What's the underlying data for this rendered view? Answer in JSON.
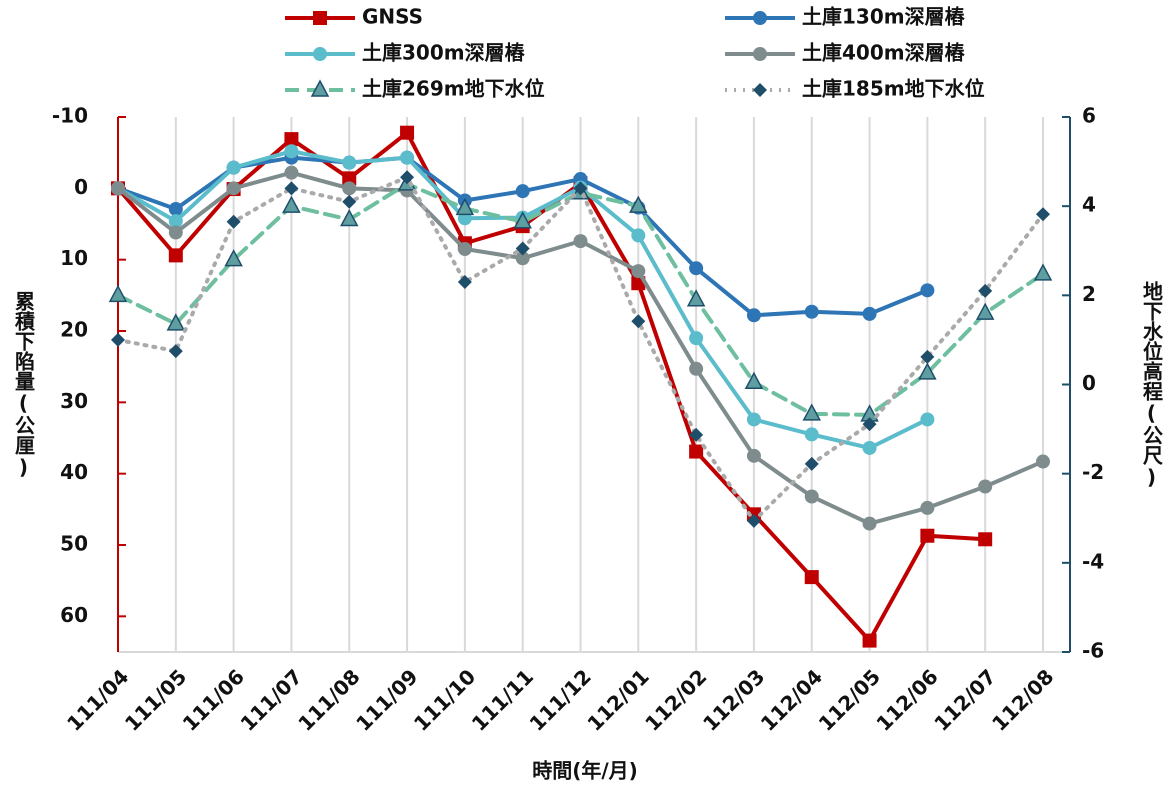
{
  "chart_data": {
    "type": "line",
    "x_label": "時間(年/月)",
    "y_label": "累積下陷量(公厘)",
    "y2_label": "地下水位高程(公尺)",
    "categories": [
      "111/04",
      "111/05",
      "111/06",
      "111/07",
      "111/08",
      "111/09",
      "111/10",
      "111/11",
      "111/12",
      "112/01",
      "112/02",
      "112/03",
      "112/04",
      "112/05",
      "112/06",
      "112/07",
      "112/08"
    ],
    "ylim": [
      -10,
      65
    ],
    "y_reversed": true,
    "yticks": [
      -10,
      0,
      10,
      20,
      30,
      40,
      50,
      60
    ],
    "y2lim": [
      -6,
      6
    ],
    "y2ticks": [
      6,
      4,
      2,
      0,
      -2,
      -4,
      -6
    ],
    "grid": "x",
    "series": [
      {
        "name": "GNSS",
        "color": "#c00000",
        "marker": "square",
        "dash": "solid",
        "values": [
          0,
          9.4,
          0.1,
          -6.9,
          -1.4,
          -7.8,
          7.7,
          5.3,
          -0.7,
          13.3,
          36.9,
          45.7,
          54.5,
          63.4,
          48.7,
          49.2,
          null
        ]
      },
      {
        "name": "土庫130m深層樁",
        "color": "#2e75b6",
        "marker": "circle",
        "dash": "solid",
        "values": [
          0,
          2.9,
          -2.9,
          -4.3,
          -3.6,
          -4.3,
          1.7,
          0.4,
          -1.3,
          2.7,
          11.2,
          17.8,
          17.3,
          17.6,
          14.3,
          null,
          null
        ]
      },
      {
        "name": "土庫300m深層樁",
        "color": "#5bbccc",
        "marker": "circle",
        "dash": "solid",
        "values": [
          0,
          4.6,
          -2.9,
          -5.2,
          -3.6,
          -4.3,
          4.2,
          4.1,
          -0.1,
          6.6,
          21,
          32.4,
          34.5,
          36.4,
          32.4,
          null,
          null
        ]
      },
      {
        "name": "土庫400m深層樁",
        "color": "#7f8c8d",
        "marker": "circle",
        "dash": "solid",
        "values": [
          0,
          6.2,
          0,
          -2.2,
          0,
          0.3,
          8.5,
          9.8,
          7.4,
          11.6,
          25.3,
          37.5,
          43.2,
          47,
          44.8,
          41.8,
          38.3
        ]
      },
      {
        "name": "土庫269m地下水位",
        "color": "#6dbf9f",
        "marker": "triangle",
        "marker_color": "#5f9ea0",
        "dash": "dashed",
        "axis": "y2",
        "values": [
          2.0,
          1.36,
          2.8,
          4.0,
          3.7,
          4.5,
          3.95,
          3.65,
          4.3,
          4.0,
          1.9,
          0.05,
          -0.66,
          -0.68,
          0.26,
          1.6,
          2.48
        ]
      },
      {
        "name": "土庫185m地下水位",
        "color": "#aaaaaa",
        "marker": "diamond",
        "marker_color": "#1f4e6b",
        "dash": "dotted",
        "axis": "y2",
        "values": [
          1.0,
          0.75,
          3.65,
          4.4,
          4.1,
          4.65,
          2.3,
          3.05,
          4.4,
          1.42,
          -1.13,
          -3.06,
          -1.78,
          -0.89,
          0.62,
          2.1,
          3.82
        ]
      }
    ]
  }
}
